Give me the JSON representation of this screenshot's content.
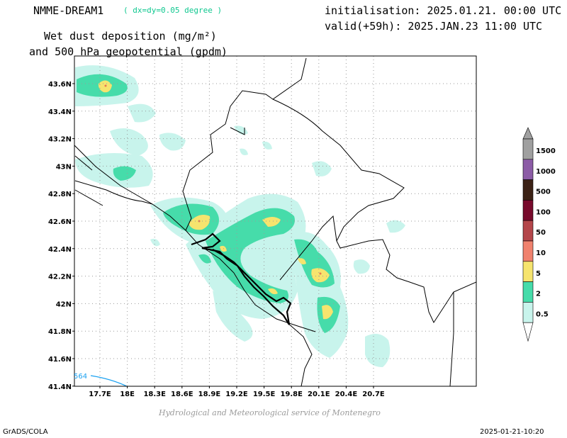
{
  "header": {
    "model_name": "NMME-DREAM1",
    "resolution": "( dx=dy=0.05 degree )",
    "initialisation": "initialisation: 2025.01.21. 00:00 UTC",
    "valid": "valid(+59h): 2025.JAN.23 11:00 UTC",
    "title_line1": "Wet dust deposition (mg/m²)",
    "title_line2": "and 500 hPa geopotential (gpdm)"
  },
  "map": {
    "lat_labels": [
      "43.6N",
      "43.4N",
      "43.2N",
      "43N",
      "42.8N",
      "42.6N",
      "42.4N",
      "42.2N",
      "42N",
      "41.8N",
      "41.6N",
      "41.4N"
    ],
    "lon_labels": [
      "17.7E",
      "18E",
      "18.3E",
      "18.6E",
      "18.9E",
      "19.2E",
      "19.5E",
      "19.8E",
      "20.1E",
      "20.4E",
      "20.7E"
    ],
    "contour_label": "564",
    "contour_color": "#1aa0f0"
  },
  "legend": {
    "levels": [
      "1500",
      "1000",
      "500",
      "100",
      "50",
      "10",
      "5",
      "2",
      "0.5"
    ],
    "colors": [
      "#a0a0a0",
      "#8c5ca6",
      "#3c2216",
      "#780a2c",
      "#b4464a",
      "#f0826e",
      "#f6e46e",
      "#46dcaa",
      "#c8f4ec"
    ]
  },
  "footer": {
    "credit": "Hydrological and Meteorological service of Montenegro",
    "left": "GrADS/COLA",
    "right": "2025-01-21-10:20"
  }
}
